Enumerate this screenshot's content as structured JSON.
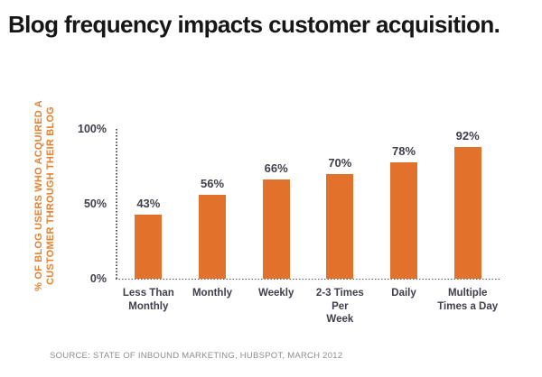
{
  "title": "Blog frequency impacts customer acquisition.",
  "source": "SOURCE: STATE OF INBOUND MARKETING, HUBSPOT, MARCH 2012",
  "colors": {
    "bar_orange": "#E2712B",
    "axis_label_orange": "#E8802F",
    "text_dark": "#3F3F4B",
    "axis_dotted": "#54545e",
    "source_gray": "#8d8d8d",
    "background": "#ffffff"
  },
  "chart_data": {
    "type": "bar",
    "title": "Blog frequency impacts customer acquisition.",
    "categories": [
      "Less Than\nMonthly",
      "Monthly",
      "Weekly",
      "2-3 Times Per\nWeek",
      "Daily",
      "Multiple\nTimes a Day"
    ],
    "values": [
      43,
      56,
      66,
      70,
      78,
      92
    ],
    "value_suffix": "%",
    "xlabel": "",
    "ylabel": "% OF BLOG USERS WHO ACQUIRED A\nCUSTOMER THROUGH THEIR BLOG",
    "ylim": [
      0,
      100
    ],
    "yticks": [
      {
        "label": "100%",
        "value": 100
      },
      {
        "label": "50%",
        "value": 50
      },
      {
        "label": "0%",
        "value": 0
      }
    ],
    "grid": false,
    "legend": "none",
    "axis_style": "dotted"
  }
}
